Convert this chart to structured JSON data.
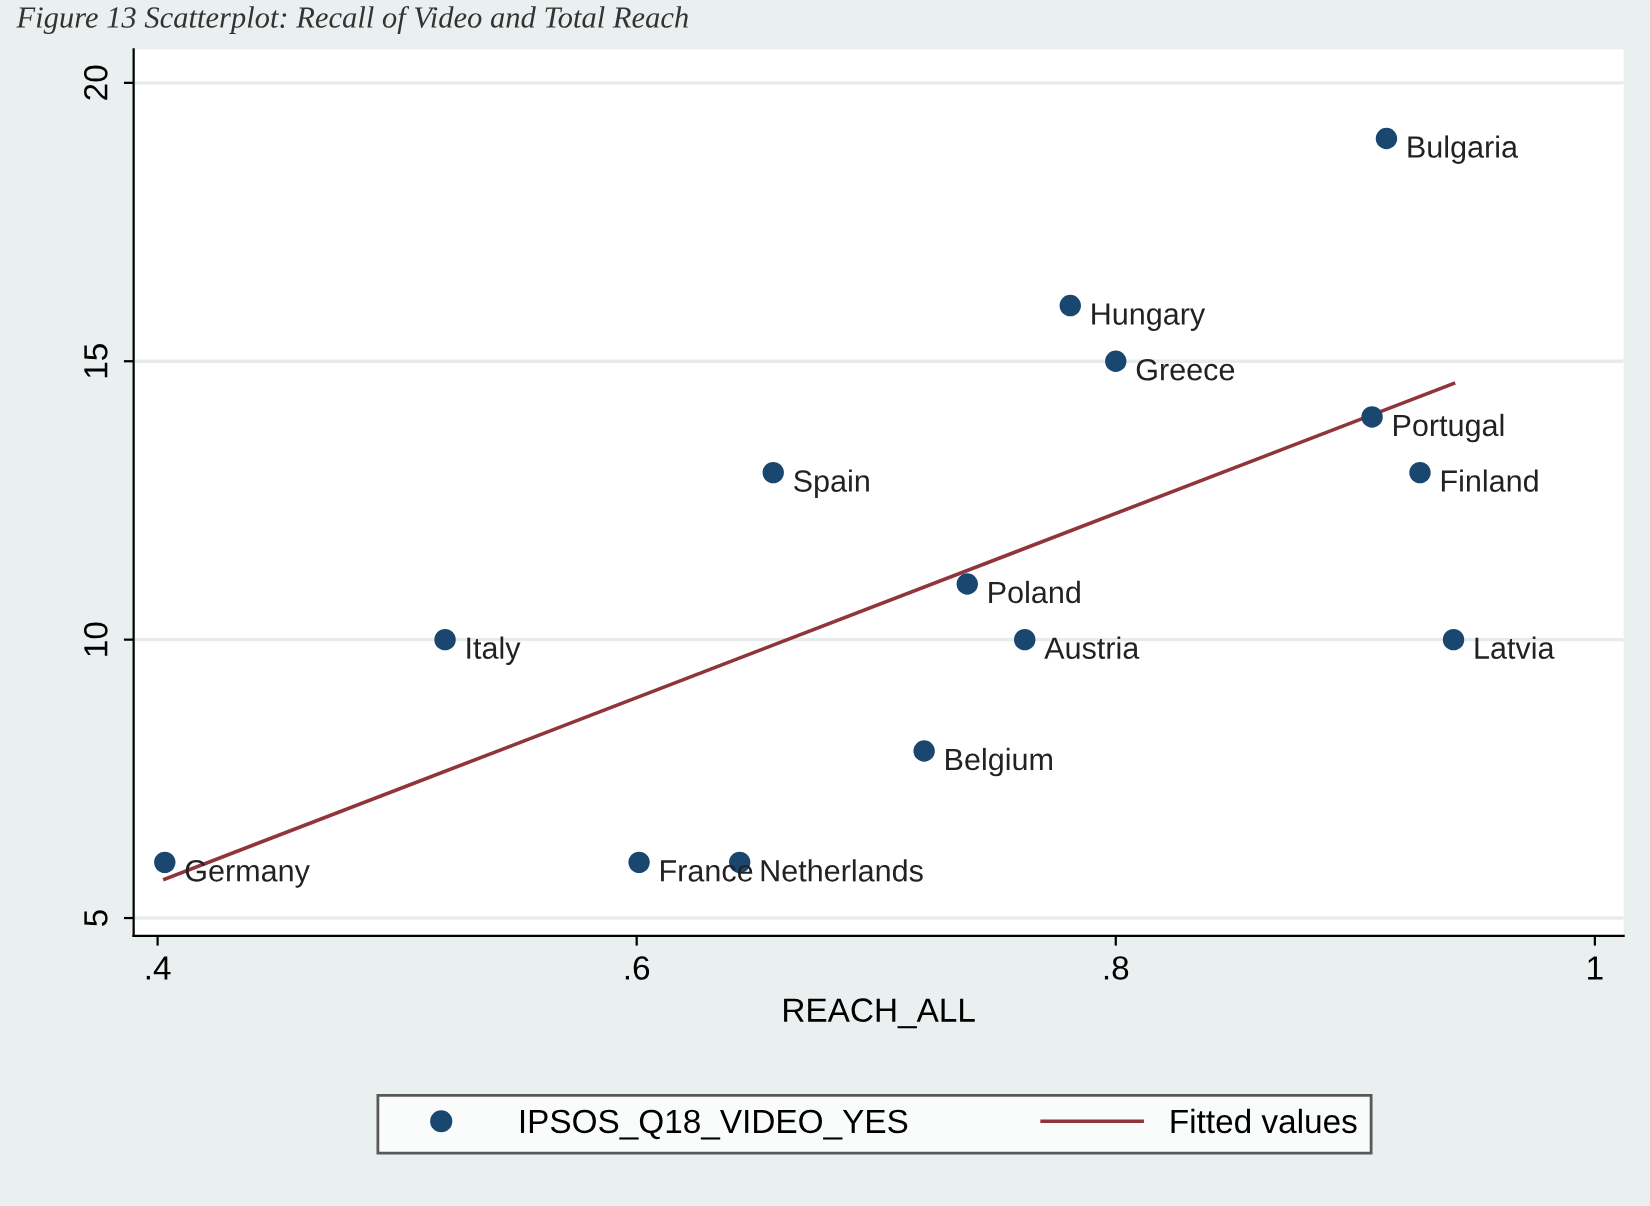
{
  "chart_data": {
    "type": "scatter",
    "title": "Figure 13 Scatterplot: Recall of Video and Total Reach",
    "xlabel": "REACH_ALL",
    "series": [
      {
        "name": "IPSOS_Q18_VIDEO_YES",
        "color": "#1a476f",
        "marker": "circle",
        "x": [
          0.403,
          0.52,
          0.601,
          0.643,
          0.657,
          0.72,
          0.738,
          0.762,
          0.781,
          0.8,
          0.907,
          0.927,
          0.941,
          0.913
        ],
        "values": [
          6,
          10,
          6,
          6,
          13,
          8,
          11,
          10,
          16,
          15,
          14,
          13,
          10,
          19
        ]
      },
      {
        "name": "Fitted values",
        "type": "line",
        "color": "#90353b",
        "marker": "none",
        "x": [
          0.403,
          0.941
        ],
        "values": [
          5.7,
          14.6
        ]
      }
    ],
    "annotations": [
      {
        "text": "Germany",
        "x": 0.403,
        "y": 6
      },
      {
        "text": "Italy",
        "x": 0.52,
        "y": 10
      },
      {
        "text": "France",
        "x": 0.601,
        "y": 6
      },
      {
        "text": "Netherlands",
        "x": 0.643,
        "y": 6
      },
      {
        "text": "Spain",
        "x": 0.657,
        "y": 13
      },
      {
        "text": "Belgium",
        "x": 0.72,
        "y": 8
      },
      {
        "text": "Poland",
        "x": 0.738,
        "y": 11
      },
      {
        "text": "Austria",
        "x": 0.762,
        "y": 10
      },
      {
        "text": "Hungary",
        "x": 0.781,
        "y": 16
      },
      {
        "text": "Greece",
        "x": 0.8,
        "y": 15
      },
      {
        "text": "Portugal",
        "x": 0.907,
        "y": 14
      },
      {
        "text": "Finland",
        "x": 0.927,
        "y": 13
      },
      {
        "text": "Latvia",
        "x": 0.941,
        "y": 10
      },
      {
        "text": "Bulgaria",
        "x": 0.913,
        "y": 19
      }
    ],
    "xlim": [
      0.39,
      1.012
    ],
    "ylim": [
      4.68,
      20.6
    ],
    "xticks": [
      {
        "value": 0.4,
        "label": ".4"
      },
      {
        "value": 0.6,
        "label": ".6"
      },
      {
        "value": 0.8,
        "label": ".8"
      },
      1
    ],
    "yticks": [
      5,
      10,
      15,
      20
    ],
    "grid": "y",
    "legend": "bottom"
  }
}
